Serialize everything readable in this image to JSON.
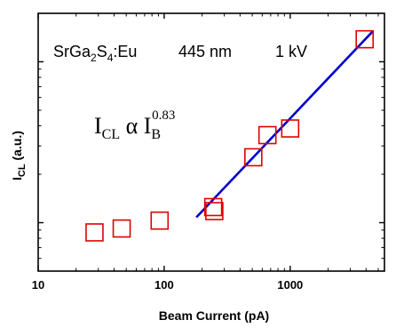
{
  "chart_data": {
    "type": "scatter",
    "x_scale": "log",
    "y_scale": "log",
    "xlim": [
      10,
      5600
    ],
    "ylim": [
      0.5,
      20
    ],
    "xlabel": "Beam Current (pA)",
    "ylabel_main": "I",
    "ylabel_sub": "CL",
    "ylabel_rest": " (a.u.)",
    "x_ticks": [
      10,
      100,
      1000
    ],
    "x_tick_labels": [
      "10",
      "100",
      "1000"
    ],
    "y_major_ticks": [
      1,
      10
    ],
    "legend": "none",
    "grid": false,
    "marker_color": "#e00000",
    "fit_color": "#0000cc",
    "points": [
      {
        "x": 28,
        "y": 0.87
      },
      {
        "x": 46,
        "y": 0.92
      },
      {
        "x": 92,
        "y": 1.03
      },
      {
        "x": 245,
        "y": 1.25
      },
      {
        "x": 250,
        "y": 1.18
      },
      {
        "x": 510,
        "y": 2.55
      },
      {
        "x": 660,
        "y": 3.5
      },
      {
        "x": 1000,
        "y": 3.85
      },
      {
        "x": 3900,
        "y": 13.8
      }
    ],
    "fit_line": [
      {
        "x": 180,
        "y": 1.08
      },
      {
        "x": 4500,
        "y": 15.4
      }
    ],
    "annotations": {
      "material_pre": "SrGa",
      "material_sub1": "2",
      "material_mid": "S",
      "material_sub2": "4",
      "material_post": ":Eu",
      "wavelength": "445 nm",
      "voltage": "1 kV",
      "formula_I1": "I",
      "formula_sub1": "CL",
      "formula_alpha": " α I",
      "formula_sub2": "B",
      "formula_exp": "0.83"
    }
  }
}
